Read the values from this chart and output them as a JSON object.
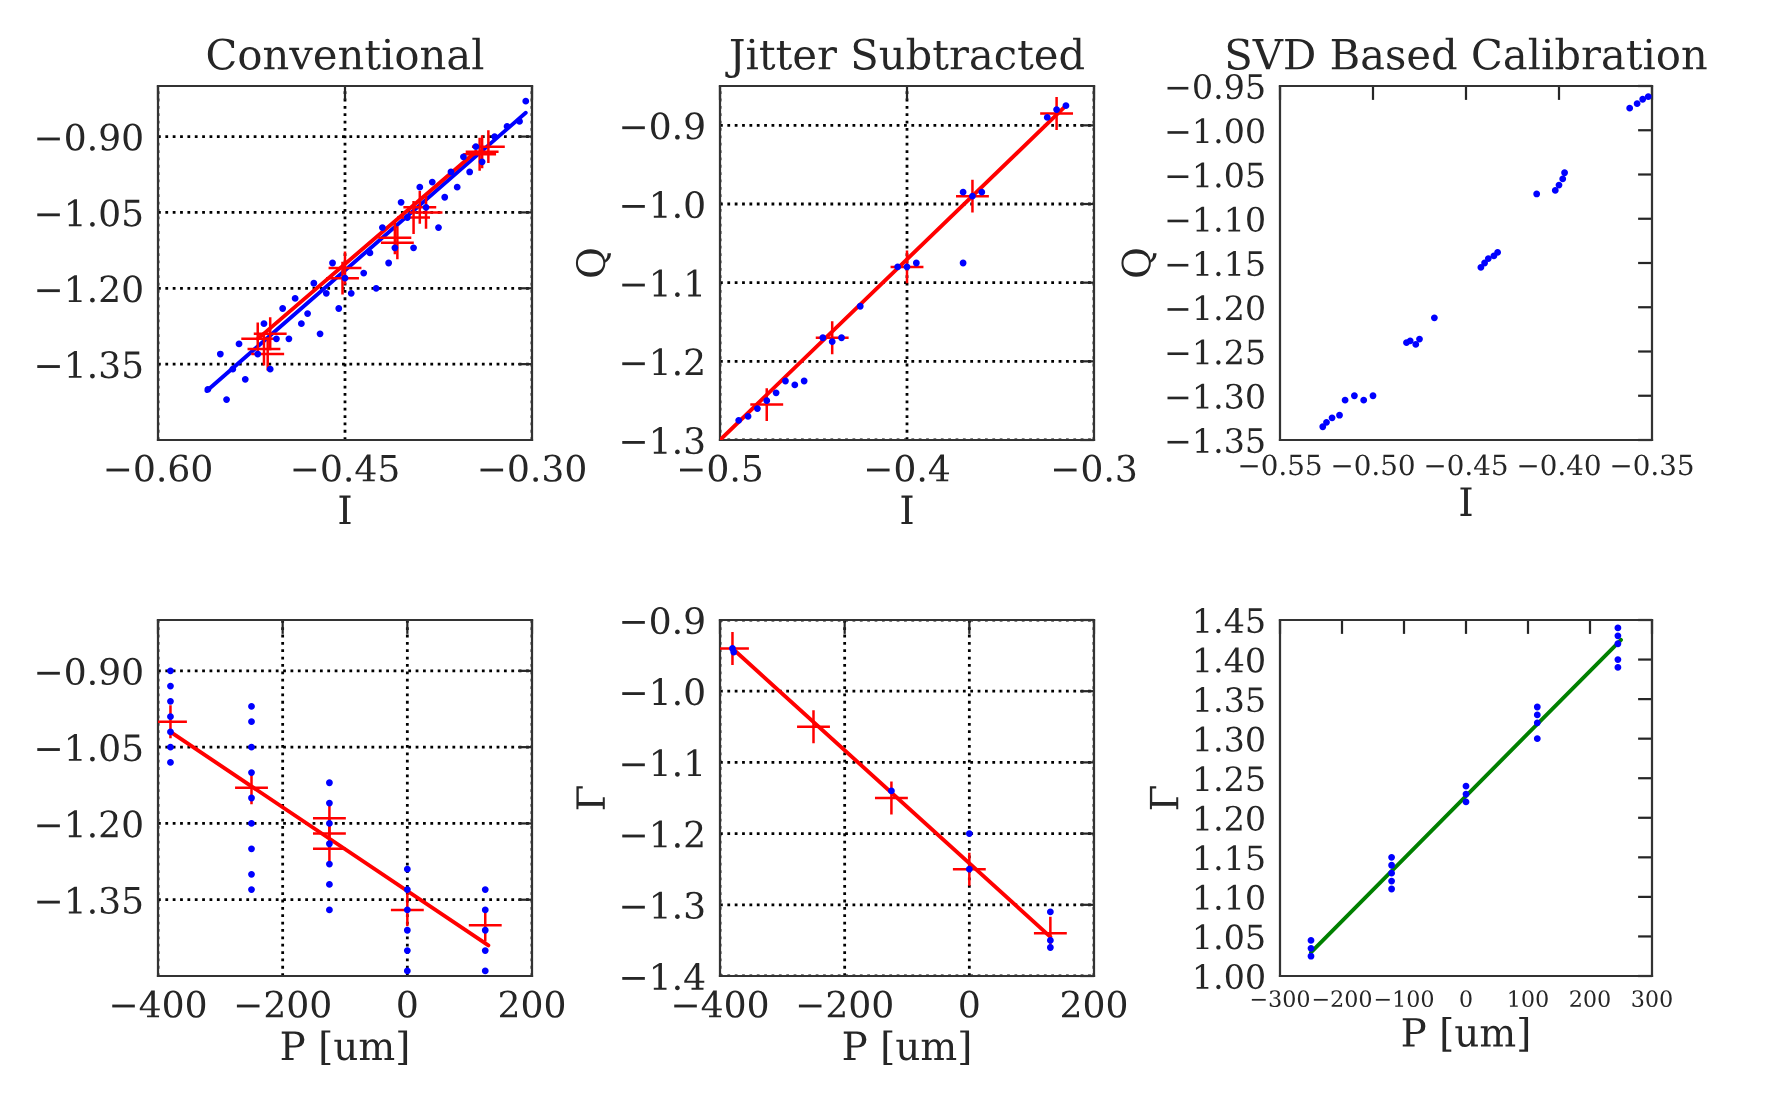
{
  "chart_data": [
    {
      "type": "scatter",
      "title": "Conventional",
      "xlabel": "I",
      "grid": true,
      "xlim": [
        -0.6,
        -0.3
      ],
      "xticks": [
        {
          "value": -0.6,
          "label": "−0.60"
        },
        {
          "value": -0.45,
          "label": "−0.45"
        },
        {
          "value": -0.3,
          "label": "−0.30"
        }
      ],
      "ylim": [
        -1.5,
        -0.8
      ],
      "yticks": [
        {
          "value": -0.9,
          "label": "−0.90"
        },
        {
          "value": -1.05,
          "label": "−1.05"
        },
        {
          "value": -1.2,
          "label": "−1.20"
        },
        {
          "value": -1.35,
          "label": "−1.35"
        }
      ],
      "series": [
        {
          "type": "scatter",
          "marker": "circle",
          "color": "#0000ff",
          "x": [
            -0.56,
            -0.55,
            -0.545,
            -0.54,
            -0.535,
            -0.53,
            -0.52,
            -0.515,
            -0.51,
            -0.505,
            -0.5,
            -0.495,
            -0.49,
            -0.485,
            -0.48,
            -0.475,
            -0.47,
            -0.465,
            -0.46,
            -0.455,
            -0.45,
            -0.445,
            -0.435,
            -0.43,
            -0.425,
            -0.42,
            -0.415,
            -0.41,
            -0.405,
            -0.4,
            -0.395,
            -0.39,
            -0.385,
            -0.38,
            -0.375,
            -0.37,
            -0.365,
            -0.36,
            -0.355,
            -0.35,
            -0.345,
            -0.34,
            -0.33,
            -0.32,
            -0.31,
            -0.305
          ],
          "values": [
            -1.4,
            -1.33,
            -1.42,
            -1.36,
            -1.31,
            -1.38,
            -1.33,
            -1.27,
            -1.36,
            -1.3,
            -1.24,
            -1.3,
            -1.22,
            -1.27,
            -1.25,
            -1.19,
            -1.29,
            -1.21,
            -1.15,
            -1.24,
            -1.18,
            -1.21,
            -1.17,
            -1.13,
            -1.2,
            -1.08,
            -1.15,
            -1.12,
            -1.03,
            -1.06,
            -1.12,
            -1.0,
            -1.04,
            -0.99,
            -1.08,
            -1.02,
            -0.97,
            -1.0,
            -0.94,
            -0.97,
            -0.92,
            -0.95,
            -0.9,
            -0.88,
            -0.87,
            -0.83
          ]
        },
        {
          "type": "line",
          "color": "#0000ff",
          "x": [
            -0.561,
            -0.305
          ],
          "values": [
            -1.403,
            -0.853
          ]
        },
        {
          "type": "line",
          "color": "#ff0000",
          "x": [
            -0.52,
            -0.345
          ],
          "values": [
            -1.3,
            -0.93
          ]
        },
        {
          "type": "scatter",
          "marker": "cross",
          "color": "#ff0000",
          "x": [
            -0.52,
            -0.515,
            -0.51,
            -0.512,
            -0.45,
            -0.452,
            -0.41,
            -0.408,
            -0.395,
            -0.39,
            -0.385,
            -0.34,
            -0.335,
            -0.342
          ],
          "values": [
            -1.3,
            -1.32,
            -1.29,
            -1.33,
            -1.16,
            -1.18,
            -1.1,
            -1.11,
            -1.06,
            -1.04,
            -1.05,
            -0.93,
            -0.92,
            -0.935
          ]
        }
      ]
    },
    {
      "type": "scatter",
      "title": "Jitter Subtracted",
      "xlabel": "I",
      "ylabel": "Q",
      "grid": true,
      "xlim": [
        -0.5,
        -0.3
      ],
      "xticks": [
        {
          "value": -0.5,
          "label": "−0.5"
        },
        {
          "value": -0.4,
          "label": "−0.4"
        },
        {
          "value": -0.3,
          "label": "−0.3"
        }
      ],
      "ylim": [
        -1.3,
        -0.85
      ],
      "yticks": [
        {
          "value": -0.9,
          "label": "−0.9"
        },
        {
          "value": -1.0,
          "label": "−1.0"
        },
        {
          "value": -1.1,
          "label": "−1.1"
        },
        {
          "value": -1.2,
          "label": "−1.2"
        },
        {
          "value": -1.3,
          "label": "−1.3"
        }
      ],
      "series": [
        {
          "type": "scatter",
          "marker": "circle",
          "color": "#0000ff",
          "x": [
            -0.49,
            -0.485,
            -0.48,
            -0.475,
            -0.47,
            -0.465,
            -0.46,
            -0.455,
            -0.445,
            -0.44,
            -0.435,
            -0.425,
            -0.405,
            -0.4,
            -0.395,
            -0.37,
            -0.365,
            -0.36,
            -0.37,
            -0.325,
            -0.32,
            -0.315
          ],
          "values": [
            -1.275,
            -1.27,
            -1.26,
            -1.25,
            -1.24,
            -1.225,
            -1.23,
            -1.225,
            -1.17,
            -1.175,
            -1.17,
            -1.13,
            -1.08,
            -1.08,
            -1.075,
            -0.985,
            -0.99,
            -0.985,
            -1.075,
            -0.89,
            -0.88,
            -0.875
          ]
        },
        {
          "type": "line",
          "color": "#ff0000",
          "x": [
            -0.5,
            -0.315
          ],
          "values": [
            -1.3,
            -0.875
          ]
        },
        {
          "type": "scatter",
          "marker": "cross",
          "color": "#ff0000",
          "x": [
            -0.475,
            -0.44,
            -0.4,
            -0.365,
            -0.32
          ],
          "values": [
            -1.255,
            -1.17,
            -1.08,
            -0.99,
            -0.885
          ]
        }
      ]
    },
    {
      "type": "scatter",
      "title": "SVD Based Calibration",
      "xlabel": "I",
      "ylabel": "Q",
      "grid": false,
      "xlim": [
        -0.55,
        -0.35
      ],
      "xticks": [
        {
          "value": -0.55,
          "label": "−0.55"
        },
        {
          "value": -0.5,
          "label": "−0.50"
        },
        {
          "value": -0.45,
          "label": "−0.45"
        },
        {
          "value": -0.4,
          "label": "−0.40"
        },
        {
          "value": -0.35,
          "label": "−0.35"
        }
      ],
      "ylim": [
        -1.35,
        -0.95
      ],
      "yticks": [
        {
          "value": -0.95,
          "label": "−0.95"
        },
        {
          "value": -1.0,
          "label": "−1.00"
        },
        {
          "value": -1.05,
          "label": "−1.05"
        },
        {
          "value": -1.1,
          "label": "−1.10"
        },
        {
          "value": -1.15,
          "label": "−1.15"
        },
        {
          "value": -1.2,
          "label": "−1.20"
        },
        {
          "value": -1.25,
          "label": "−1.25"
        },
        {
          "value": -1.3,
          "label": "−1.30"
        },
        {
          "value": -1.35,
          "label": "−1.35"
        }
      ],
      "series": [
        {
          "type": "scatter",
          "marker": "circle",
          "color": "#0000ff",
          "x": [
            -0.527,
            -0.525,
            -0.522,
            -0.518,
            -0.515,
            -0.51,
            -0.505,
            -0.5,
            -0.482,
            -0.48,
            -0.477,
            -0.475,
            -0.467,
            -0.442,
            -0.44,
            -0.438,
            -0.435,
            -0.433,
            -0.412,
            -0.402,
            -0.4,
            -0.398,
            -0.397,
            -0.362,
            -0.358,
            -0.355,
            -0.352
          ],
          "values": [
            -1.335,
            -1.33,
            -1.325,
            -1.322,
            -1.305,
            -1.3,
            -1.305,
            -1.3,
            -1.24,
            -1.238,
            -1.242,
            -1.236,
            -1.212,
            -1.155,
            -1.15,
            -1.145,
            -1.142,
            -1.138,
            -1.072,
            -1.068,
            -1.062,
            -1.055,
            -1.048,
            -0.975,
            -0.97,
            -0.965,
            -0.962
          ]
        }
      ]
    },
    {
      "type": "scatter",
      "xlabel": "P [um]",
      "grid": true,
      "xlim": [
        -400,
        200
      ],
      "xticks": [
        {
          "value": -400,
          "label": "−400"
        },
        {
          "value": -200,
          "label": "−200"
        },
        0,
        200
      ],
      "ylim": [
        -1.5,
        -0.8
      ],
      "yticks": [
        {
          "value": -0.9,
          "label": "−0.90"
        },
        {
          "value": -1.05,
          "label": "−1.05"
        },
        {
          "value": -1.2,
          "label": "−1.20"
        },
        {
          "value": -1.35,
          "label": "−1.35"
        }
      ],
      "series": [
        {
          "type": "scatter",
          "marker": "circle",
          "color": "#0000ff",
          "x": [
            -380,
            -380,
            -380,
            -380,
            -380,
            -380,
            -380,
            -250,
            -250,
            -250,
            -250,
            -250,
            -250,
            -250,
            -250,
            -250,
            -125,
            -125,
            -125,
            -125,
            -125,
            -125,
            -125,
            0,
            0,
            0,
            0,
            0,
            0,
            125,
            125,
            125,
            125,
            125
          ],
          "values": [
            -0.9,
            -0.93,
            -0.96,
            -0.99,
            -1.02,
            -1.05,
            -1.08,
            -0.97,
            -1.0,
            -1.05,
            -1.1,
            -1.15,
            -1.2,
            -1.25,
            -1.3,
            -1.33,
            -1.12,
            -1.16,
            -1.2,
            -1.24,
            -1.28,
            -1.32,
            -1.37,
            -1.29,
            -1.33,
            -1.37,
            -1.41,
            -1.45,
            -1.49,
            -1.33,
            -1.37,
            -1.41,
            -1.45,
            -1.49
          ]
        },
        {
          "type": "line",
          "color": "#ff0000",
          "x": [
            -380,
            130
          ],
          "values": [
            -1.02,
            -1.44
          ]
        },
        {
          "type": "scatter",
          "marker": "cross",
          "color": "#ff0000",
          "x": [
            -380,
            -250,
            -125,
            -125,
            -125,
            0,
            125
          ],
          "values": [
            -1.0,
            -1.13,
            -1.19,
            -1.25,
            -1.22,
            -1.37,
            -1.4
          ]
        }
      ]
    },
    {
      "type": "scatter",
      "xlabel": "P [um]",
      "ylabel": "Γ",
      "grid": true,
      "xlim": [
        -400,
        200
      ],
      "xticks": [
        {
          "value": -400,
          "label": "−400"
        },
        {
          "value": -200,
          "label": "−200"
        },
        0,
        200
      ],
      "ylim": [
        -1.4,
        -0.9
      ],
      "yticks": [
        {
          "value": -0.9,
          "label": "−0.9"
        },
        {
          "value": -1.0,
          "label": "−1.0"
        },
        {
          "value": -1.1,
          "label": "−1.1"
        },
        {
          "value": -1.2,
          "label": "−1.2"
        },
        {
          "value": -1.3,
          "label": "−1.3"
        },
        {
          "value": -1.4,
          "label": "−1.4"
        }
      ],
      "series": [
        {
          "type": "scatter",
          "marker": "circle",
          "color": "#0000ff",
          "x": [
            -380,
            -378,
            -125,
            0,
            0,
            130,
            130,
            130
          ],
          "values": [
            -0.94,
            -0.945,
            -1.14,
            -1.2,
            -1.25,
            -1.31,
            -1.35,
            -1.36
          ]
        },
        {
          "type": "line",
          "color": "#ff0000",
          "x": [
            -380,
            130
          ],
          "values": [
            -0.94,
            -1.345
          ]
        },
        {
          "type": "scatter",
          "marker": "cross",
          "color": "#ff0000",
          "x": [
            -380,
            -250,
            -125,
            0,
            130
          ],
          "values": [
            -0.94,
            -1.05,
            -1.15,
            -1.25,
            -1.34
          ]
        }
      ]
    },
    {
      "type": "scatter",
      "xlabel": "P [um]",
      "ylabel": "Γ",
      "grid": false,
      "xlim": [
        -300,
        300
      ],
      "xticks": [
        {
          "value": -300,
          "label": "−300"
        },
        {
          "value": -200,
          "label": "−200"
        },
        {
          "value": -100,
          "label": "−100"
        },
        0,
        100,
        200,
        300
      ],
      "ylim": [
        1.0,
        1.45
      ],
      "yticks": [
        {
          "value": 1.0,
          "label": "1.00"
        },
        {
          "value": 1.05,
          "label": "1.05"
        },
        {
          "value": 1.1,
          "label": "1.10"
        },
        {
          "value": 1.15,
          "label": "1.15"
        },
        {
          "value": 1.2,
          "label": "1.20"
        },
        {
          "value": 1.25,
          "label": "1.25"
        },
        {
          "value": 1.3,
          "label": "1.30"
        },
        {
          "value": 1.35,
          "label": "1.35"
        },
        {
          "value": 1.4,
          "label": "1.40"
        },
        {
          "value": 1.45,
          "label": "1.45"
        }
      ],
      "series": [
        {
          "type": "scatter",
          "marker": "circle",
          "color": "#0000ff",
          "x": [
            -250,
            -250,
            -250,
            -120,
            -120,
            -120,
            -120,
            -120,
            0,
            0,
            0,
            115,
            115,
            115,
            115,
            245,
            245,
            245,
            245,
            245
          ],
          "values": [
            1.025,
            1.035,
            1.045,
            1.11,
            1.12,
            1.13,
            1.14,
            1.15,
            1.22,
            1.23,
            1.24,
            1.3,
            1.32,
            1.33,
            1.34,
            1.39,
            1.4,
            1.42,
            1.43,
            1.44
          ]
        },
        {
          "type": "line",
          "color": "#008000",
          "x": [
            -250,
            250
          ],
          "values": [
            1.03,
            1.425
          ]
        }
      ]
    }
  ]
}
